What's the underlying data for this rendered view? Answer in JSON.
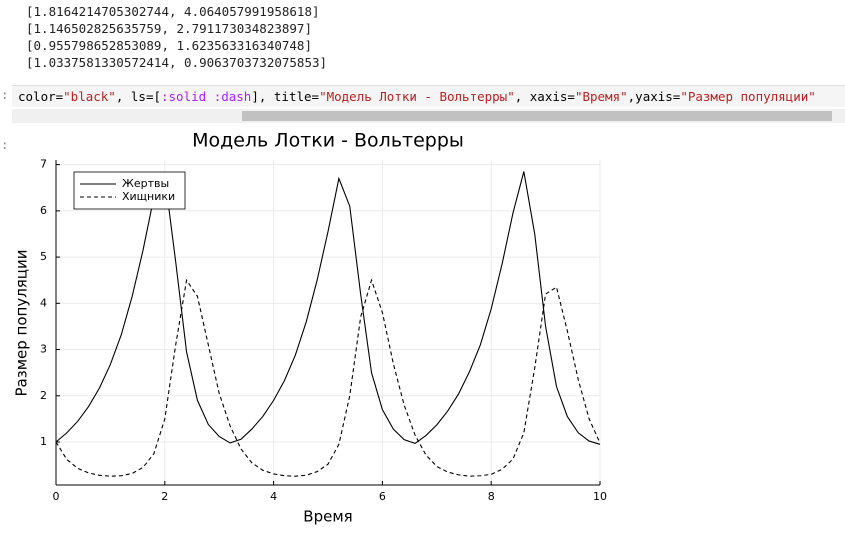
{
  "output_lines": [
    "[1.8164214705302744, 4.064057991958618]",
    "[1.146502825635759, 2.791173034823897]",
    "[0.955798652853089, 1.623563316340748]",
    "[1.0337581330572414, 0.9063703732075853]"
  ],
  "prompt": ":",
  "code_tokens": [
    "color=",
    "\"black\"",
    ", ls=[",
    ":solid",
    " ",
    ":dash",
    "], title=",
    "\"Модель Лотки - Вольтерры\"",
    ", xaxis=",
    "\"Время\"",
    ",yaxis=",
    "\"Размер популяции\""
  ],
  "chart_data": {
    "type": "line",
    "title": "Модель Лотки - Вольтерры",
    "x_label": "Время",
    "y_label": "Размер популяции",
    "x": [
      0,
      0.2,
      0.4,
      0.6,
      0.8,
      1.0,
      1.2,
      1.4,
      1.6,
      1.8,
      2.0,
      2.2,
      2.4,
      2.6,
      2.8,
      3.0,
      3.2,
      3.4,
      3.6,
      3.8,
      4.0,
      4.2,
      4.4,
      4.6,
      4.8,
      5.0,
      5.2,
      5.4,
      5.6,
      5.8,
      6.0,
      6.2,
      6.4,
      6.6,
      6.8,
      7.0,
      7.2,
      7.4,
      7.6,
      7.8,
      8.0,
      8.2,
      8.4,
      8.6,
      8.8,
      9.0,
      9.2,
      9.4,
      9.6,
      9.8,
      10.0
    ],
    "series": [
      {
        "name": "Жертвы",
        "color": "#000000",
        "dash": "solid",
        "values": [
          1.0,
          1.2,
          1.45,
          1.77,
          2.17,
          2.68,
          3.32,
          4.15,
          5.15,
          6.3,
          6.75,
          4.9,
          2.95,
          1.9,
          1.38,
          1.12,
          0.98,
          1.06,
          1.28,
          1.55,
          1.9,
          2.33,
          2.88,
          3.6,
          4.5,
          5.55,
          6.7,
          6.1,
          4.2,
          2.5,
          1.7,
          1.28,
          1.05,
          0.97,
          1.14,
          1.37,
          1.67,
          2.04,
          2.52,
          3.1,
          3.88,
          4.85,
          5.95,
          6.85,
          5.5,
          3.5,
          2.2,
          1.55,
          1.2,
          1.02,
          0.95
        ]
      },
      {
        "name": "Хищники",
        "color": "#000000",
        "dash": "dash",
        "values": [
          1.0,
          0.62,
          0.43,
          0.33,
          0.28,
          0.26,
          0.27,
          0.32,
          0.45,
          0.75,
          1.5,
          3.1,
          4.5,
          4.15,
          3.1,
          2.05,
          1.35,
          0.85,
          0.55,
          0.39,
          0.31,
          0.27,
          0.26,
          0.28,
          0.36,
          0.52,
          0.95,
          2.0,
          3.7,
          4.5,
          3.8,
          2.7,
          1.8,
          1.15,
          0.72,
          0.47,
          0.35,
          0.29,
          0.26,
          0.27,
          0.3,
          0.41,
          0.63,
          1.2,
          2.6,
          4.2,
          4.35,
          3.4,
          2.35,
          1.5,
          0.98
        ]
      }
    ],
    "xlim": [
      0,
      10
    ],
    "ylim": [
      0.07,
      7.1
    ],
    "xticks": [
      0,
      2,
      4,
      6,
      8,
      10
    ],
    "yticks": [
      1,
      2,
      3,
      4,
      5,
      6,
      7
    ],
    "grid": true,
    "legend": "top-left"
  }
}
